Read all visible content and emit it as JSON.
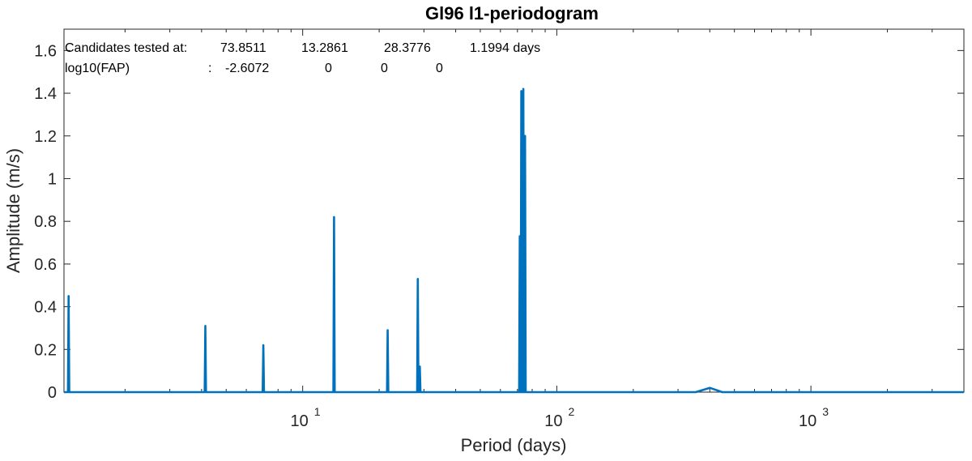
{
  "chart_data": {
    "type": "line",
    "title": "Gl96 l1-periodogram",
    "xlabel": "Period (days)",
    "ylabel": "Amplitude (m/s)",
    "x_scale": "log",
    "xlim": [
      1.15,
      4000
    ],
    "ylim": [
      0,
      1.7
    ],
    "grid": false,
    "yticks": [
      0,
      0.2,
      0.4,
      0.6,
      0.8,
      1,
      1.2,
      1.4,
      1.6
    ],
    "ytick_labels": [
      "0",
      "0.2",
      "0.4",
      "0.6",
      "0.8",
      "1",
      "1.2",
      "1.4",
      "1.6"
    ],
    "xticks": [
      10,
      100,
      1000
    ],
    "xtick_labels": [
      {
        "base": "10",
        "exp": "1"
      },
      {
        "base": "10",
        "exp": "2"
      },
      {
        "base": "10",
        "exp": "3"
      }
    ],
    "line_color": "#0072BD",
    "annotations": {
      "row1_label": "Candidates tested at:",
      "row1_values": [
        "73.8511",
        "13.2861",
        "28.3776",
        "1.1994 days"
      ],
      "row2_label": "log10(FAP)",
      "row2_sep": ":",
      "row2_values": [
        "-2.6072",
        "0",
        "0",
        "0"
      ]
    },
    "series": [
      {
        "peaks": [
          {
            "period": 1.1994,
            "amplitude": 0.45
          },
          {
            "period": 4.14,
            "amplitude": 0.31
          },
          {
            "period": 7.0,
            "amplitude": 0.22
          },
          {
            "period": 13.2861,
            "amplitude": 0.82
          },
          {
            "period": 21.6,
            "amplitude": 0.29
          },
          {
            "period": 28.3776,
            "amplitude": 0.53
          },
          {
            "period": 28.9,
            "amplitude": 0.12
          },
          {
            "period": 71.5,
            "amplitude": 0.73
          },
          {
            "period": 72.5,
            "amplitude": 1.41
          },
          {
            "period": 73.8511,
            "amplitude": 1.42
          },
          {
            "period": 75.0,
            "amplitude": 1.2
          },
          {
            "period": 400,
            "amplitude": 0.02
          }
        ]
      }
    ]
  }
}
